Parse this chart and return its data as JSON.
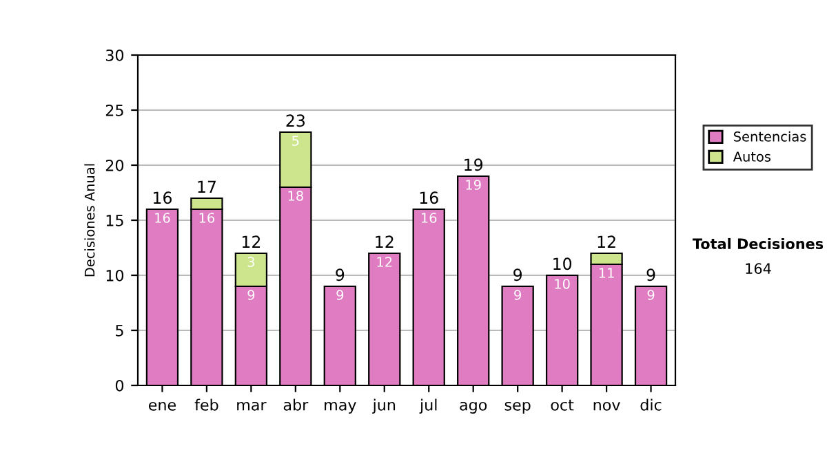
{
  "chart_data": {
    "type": "bar",
    "stacked": true,
    "ylabel": "Decisiones Anual",
    "categories": [
      "ene",
      "feb",
      "mar",
      "abr",
      "may",
      "jun",
      "jul",
      "ago",
      "sep",
      "oct",
      "nov",
      "dic"
    ],
    "series": [
      {
        "name": "Sentencias",
        "color": "#e07cc2",
        "values": [
          16,
          16,
          9,
          18,
          9,
          12,
          16,
          19,
          9,
          10,
          11,
          9
        ],
        "value_labels": [
          "16",
          "16",
          "9",
          "18",
          "9",
          "12",
          "16",
          "19",
          "9",
          "10",
          "11",
          "9"
        ]
      },
      {
        "name": "Autos",
        "color": "#cde68e",
        "values": [
          0,
          1,
          3,
          5,
          0,
          0,
          0,
          0,
          0,
          0,
          1,
          0
        ],
        "value_labels": [
          null,
          null,
          "3",
          "5",
          null,
          null,
          null,
          null,
          null,
          null,
          null,
          null
        ]
      }
    ],
    "totals": [
      "16",
      "17",
      "12",
      "23",
      "9",
      "12",
      "16",
      "19",
      "9",
      "10",
      "12",
      "9"
    ],
    "ylim": [
      0,
      30
    ],
    "yticks": [
      0,
      5,
      10,
      15,
      20,
      25,
      30
    ],
    "grid": "y",
    "legend": "right",
    "annotations": [
      "Total Decisiones",
      "164"
    ]
  }
}
